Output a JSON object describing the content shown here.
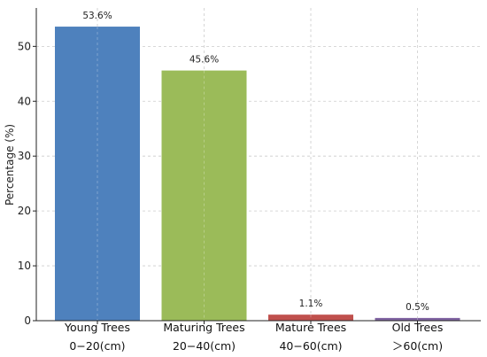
{
  "chart_data": {
    "type": "bar",
    "title": "",
    "xlabel": "",
    "ylabel": "Percentage (%)",
    "ylim": [
      0,
      57
    ],
    "yticks": [
      0,
      10,
      20,
      30,
      40,
      50
    ],
    "grid": true,
    "categories": [
      {
        "line1": "Young Trees",
        "line2": "0−20(cm)"
      },
      {
        "line1": "Maturing Trees",
        "line2": "20−40(cm)"
      },
      {
        "line1": "Mature Trees",
        "line2": "40−60(cm)"
      },
      {
        "line1": "Old Trees",
        "line2": "＞60(cm)"
      }
    ],
    "values": [
      53.6,
      45.6,
      1.1,
      0.5
    ],
    "value_labels": [
      "53.6%",
      "45.6%",
      "1.1%",
      "0.5%"
    ],
    "colors": [
      "#4e81bd",
      "#9bbb59",
      "#c0504d",
      "#8064a2"
    ]
  }
}
